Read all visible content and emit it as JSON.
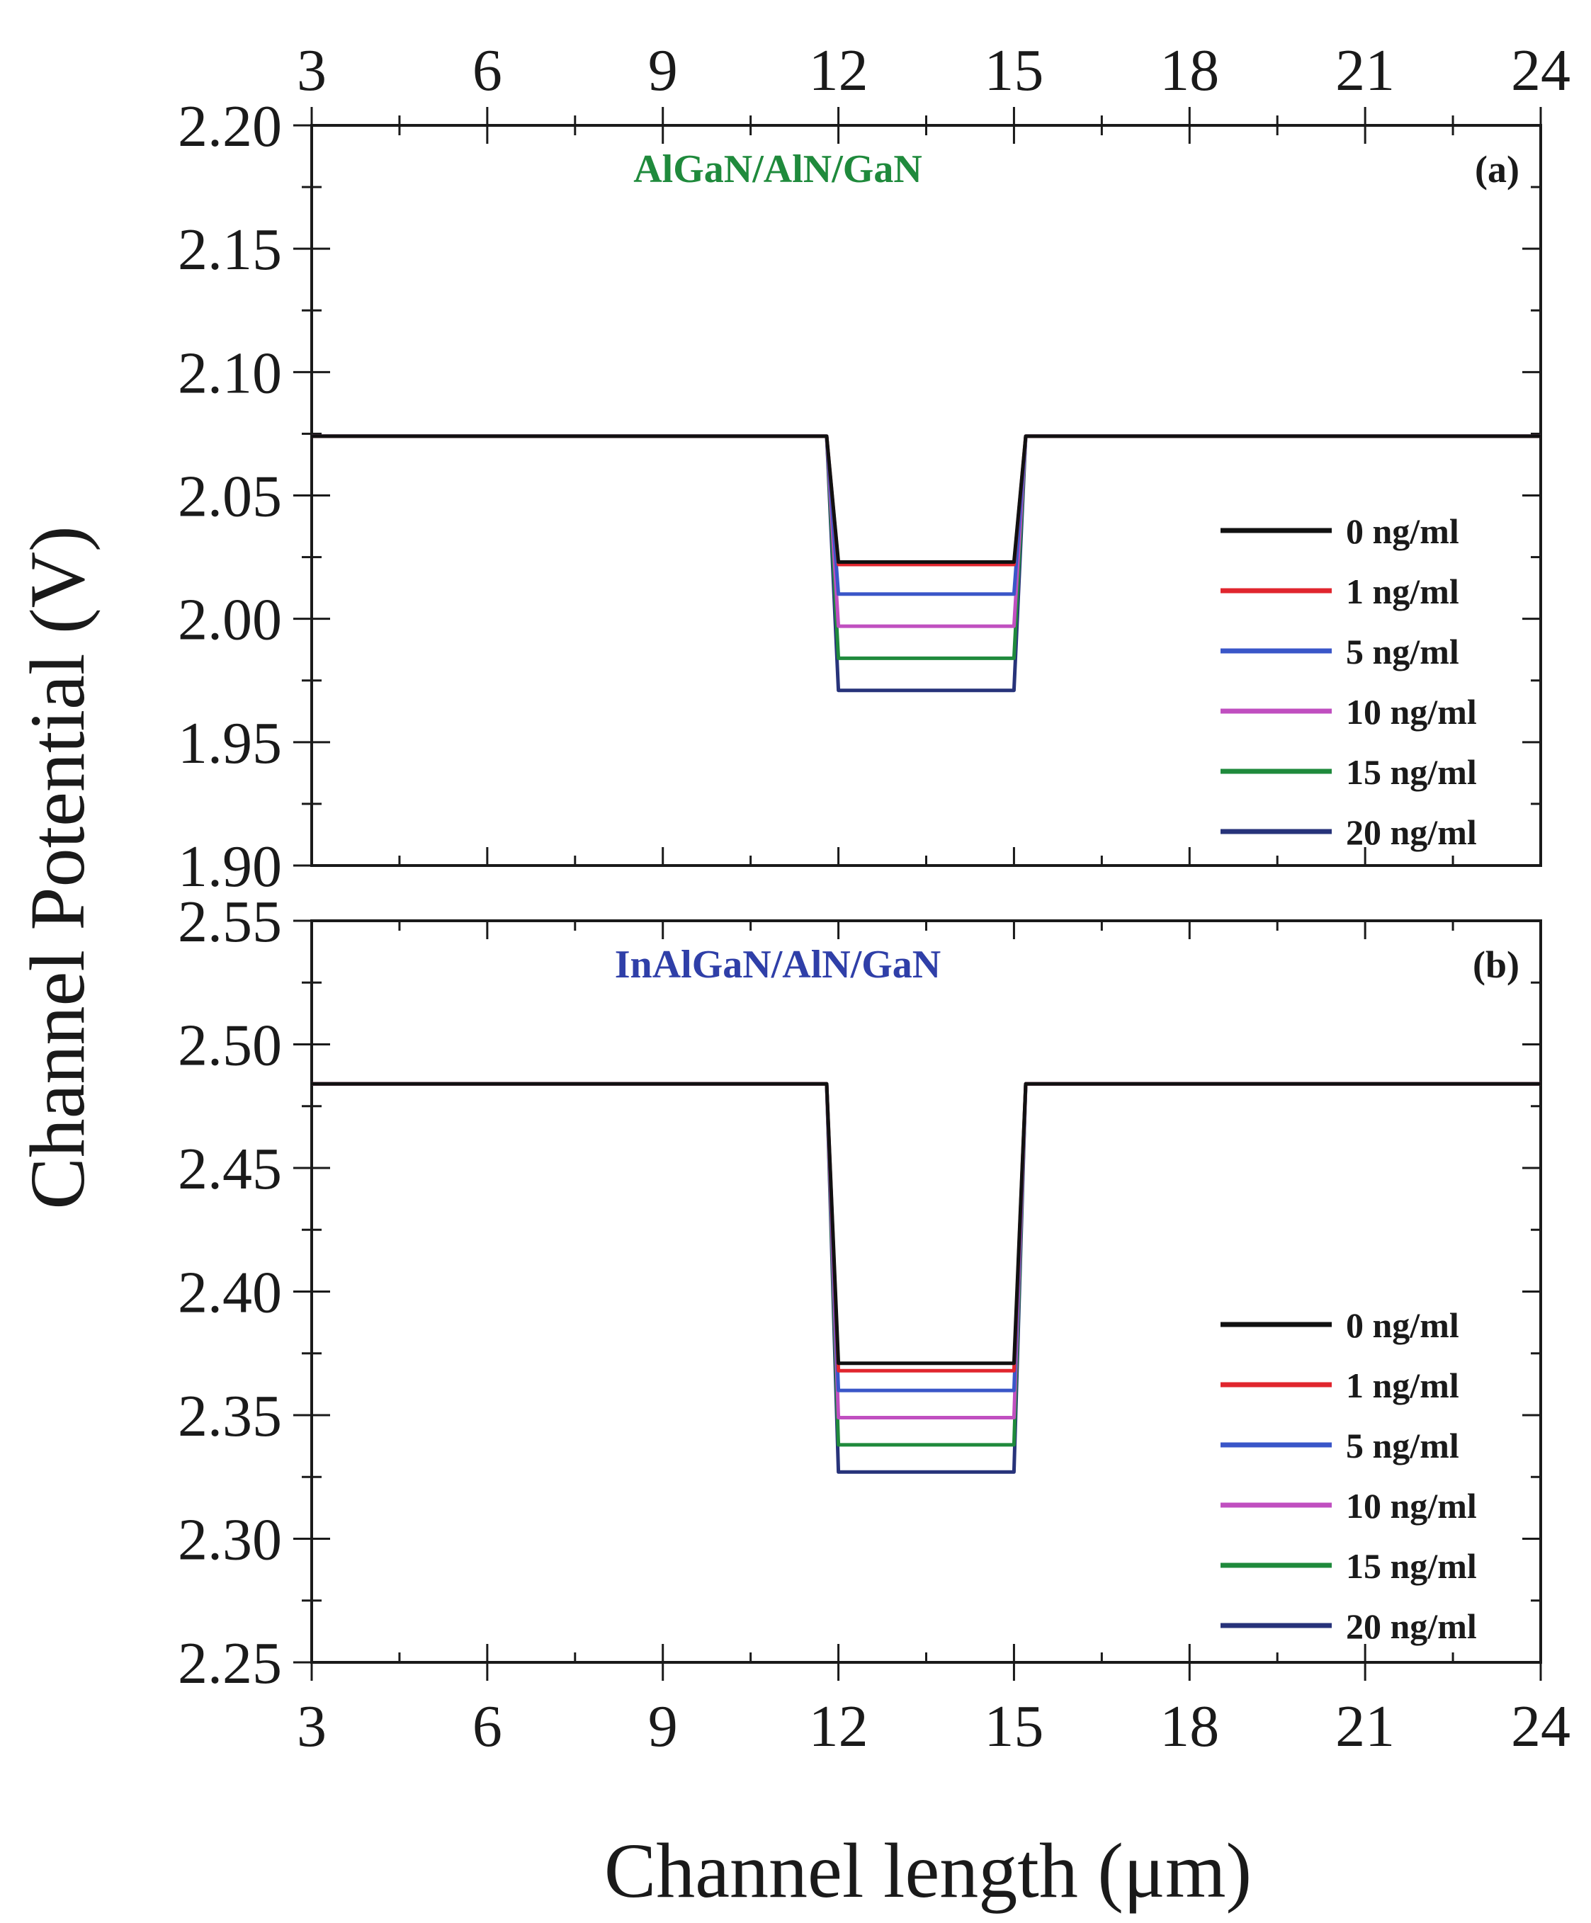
{
  "chart_data": [
    {
      "type": "line",
      "panel_label": "(a)",
      "title": "AlGaN/AlN/GaN",
      "title_color": "#1f8a3c",
      "xlabel": "Channel length (μm)",
      "ylabel": "Channel Potential (V)",
      "xlim": [
        3,
        24
      ],
      "ylim": [
        1.9,
        2.2
      ],
      "xticks": [
        "3",
        "6",
        "9",
        "12",
        "15",
        "18",
        "21",
        "24"
      ],
      "yticks": [
        "1.90",
        "1.95",
        "2.00",
        "2.05",
        "2.10",
        "2.15",
        "2.20"
      ],
      "legend_position": "bottom-right",
      "series": [
        {
          "name": "0 ng/ml",
          "color": "#111111",
          "baseline": 2.074,
          "dip_start": 11.8,
          "dip_end": 15.2,
          "gate_start": 12.0,
          "gate_end": 15.0,
          "min": 2.023
        },
        {
          "name": "1 ng/ml",
          "color": "#e0262e",
          "baseline": 2.074,
          "dip_start": 11.8,
          "dip_end": 15.2,
          "gate_start": 12.0,
          "gate_end": 15.0,
          "min": 2.022
        },
        {
          "name": "5 ng/ml",
          "color": "#3a56c8",
          "baseline": 2.074,
          "dip_start": 11.8,
          "dip_end": 15.2,
          "gate_start": 12.0,
          "gate_end": 15.0,
          "min": 2.01
        },
        {
          "name": "10 ng/ml",
          "color": "#c04fc0",
          "baseline": 2.074,
          "dip_start": 11.8,
          "dip_end": 15.2,
          "gate_start": 12.0,
          "gate_end": 15.0,
          "min": 1.997
        },
        {
          "name": "15 ng/ml",
          "color": "#1f8a3c",
          "baseline": 2.074,
          "dip_start": 11.8,
          "dip_end": 15.2,
          "gate_start": 12.0,
          "gate_end": 15.0,
          "min": 1.984
        },
        {
          "name": "20 ng/ml",
          "color": "#27337a",
          "baseline": 2.074,
          "dip_start": 11.8,
          "dip_end": 15.2,
          "gate_start": 12.0,
          "gate_end": 15.0,
          "min": 1.971
        }
      ]
    },
    {
      "type": "line",
      "panel_label": "(b)",
      "title": "InAlGaN/AlN/GaN",
      "title_color": "#2f3fa8",
      "xlabel": "Channel length (μm)",
      "ylabel": "Channel Potential (V)",
      "xlim": [
        3,
        24
      ],
      "ylim": [
        2.25,
        2.55
      ],
      "xticks": [
        "3",
        "6",
        "9",
        "12",
        "15",
        "18",
        "21",
        "24"
      ],
      "yticks": [
        "2.25",
        "2.30",
        "2.35",
        "2.40",
        "2.45",
        "2.50",
        "2.55"
      ],
      "legend_position": "bottom-right",
      "series": [
        {
          "name": "0 ng/ml",
          "color": "#111111",
          "baseline": 2.484,
          "dip_start": 11.8,
          "dip_end": 15.2,
          "gate_start": 12.0,
          "gate_end": 15.0,
          "min": 2.371
        },
        {
          "name": "1 ng/ml",
          "color": "#e0262e",
          "baseline": 2.484,
          "dip_start": 11.8,
          "dip_end": 15.2,
          "gate_start": 12.0,
          "gate_end": 15.0,
          "min": 2.368
        },
        {
          "name": "5 ng/ml",
          "color": "#3a56c8",
          "baseline": 2.484,
          "dip_start": 11.8,
          "dip_end": 15.2,
          "gate_start": 12.0,
          "gate_end": 15.0,
          "min": 2.36
        },
        {
          "name": "10 ng/ml",
          "color": "#c04fc0",
          "baseline": 2.484,
          "dip_start": 11.8,
          "dip_end": 15.2,
          "gate_start": 12.0,
          "gate_end": 15.0,
          "min": 2.349
        },
        {
          "name": "15 ng/ml",
          "color": "#1f8a3c",
          "baseline": 2.484,
          "dip_start": 11.8,
          "dip_end": 15.2,
          "gate_start": 12.0,
          "gate_end": 15.0,
          "min": 2.338
        },
        {
          "name": "20 ng/ml",
          "color": "#27337a",
          "baseline": 2.484,
          "dip_start": 11.8,
          "dip_end": 15.2,
          "gate_start": 12.0,
          "gate_end": 15.0,
          "min": 2.327
        }
      ]
    }
  ],
  "figure": {
    "ylabel": "Channel Potential (V)",
    "xlabel": "Channel length (μm)"
  }
}
